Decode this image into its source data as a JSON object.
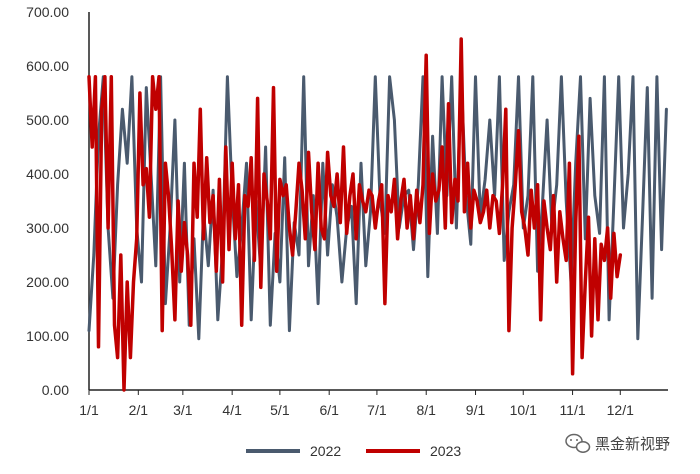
{
  "chart_data": {
    "type": "line",
    "title": "",
    "xlabel": "",
    "ylabel": "",
    "ylim": [
      0,
      700
    ],
    "y_ticks": [
      0,
      100,
      200,
      300,
      400,
      500,
      600,
      700
    ],
    "y_tick_labels": [
      "0.00",
      "100.00",
      "200.00",
      "300.00",
      "400.00",
      "500.00",
      "600.00",
      "700.00"
    ],
    "x_ticks": [
      1,
      32,
      60,
      91,
      121,
      152,
      182,
      213,
      244,
      274,
      305,
      335
    ],
    "x_tick_labels": [
      "1/1",
      "2/1",
      "3/1",
      "4/1",
      "5/1",
      "6/1",
      "7/1",
      "8/1",
      "9/1",
      "10/1",
      "11/1",
      "12/1"
    ],
    "grid": false,
    "legend_position": "bottom",
    "series": [
      {
        "name": "2022",
        "color": "#4a5a6e",
        "x": [
          1,
          4,
          7,
          10,
          13,
          16,
          19,
          22,
          25,
          28,
          31,
          34,
          37,
          40,
          43,
          46,
          49,
          52,
          55,
          58,
          61,
          64,
          67,
          70,
          73,
          76,
          79,
          82,
          85,
          88,
          91,
          94,
          97,
          100,
          103,
          106,
          109,
          112,
          115,
          118,
          121,
          124,
          127,
          130,
          133,
          136,
          139,
          142,
          145,
          148,
          151,
          154,
          157,
          160,
          163,
          166,
          169,
          172,
          175,
          178,
          181,
          184,
          187,
          190,
          193,
          196,
          199,
          202,
          205,
          208,
          211,
          214,
          217,
          220,
          223,
          226,
          229,
          232,
          235,
          238,
          241,
          244,
          247,
          250,
          253,
          256,
          259,
          262,
          265,
          268,
          271,
          274,
          277,
          280,
          283,
          286,
          289,
          292,
          295,
          298,
          301,
          304,
          307,
          310,
          313,
          316,
          319,
          322,
          325,
          328,
          331,
          334,
          337,
          340,
          343,
          346,
          349,
          352,
          355,
          358,
          361,
          364
        ],
        "values": [
          110,
          250,
          470,
          580,
          300,
          170,
          380,
          520,
          420,
          580,
          300,
          200,
          560,
          400,
          230,
          580,
          160,
          300,
          500,
          200,
          420,
          120,
          280,
          95,
          330,
          230,
          370,
          130,
          260,
          580,
          360,
          210,
          300,
          420,
          130,
          350,
          220,
          450,
          120,
          290,
          200,
          430,
          110,
          310,
          250,
          580,
          230,
          360,
          160,
          420,
          250,
          380,
          320,
          200,
          300,
          340,
          160,
          420,
          230,
          330,
          580,
          350,
          290,
          580,
          500,
          300,
          360,
          370,
          260,
          380,
          580,
          210,
          470,
          290,
          580,
          360,
          580,
          300,
          580,
          360,
          270,
          580,
          320,
          390,
          500,
          360,
          580,
          240,
          330,
          380,
          580,
          300,
          360,
          580,
          220,
          340,
          500,
          300,
          380,
          580,
          350,
          200,
          420,
          580,
          280,
          540,
          360,
          290,
          580,
          130,
          350,
          580,
          300,
          400,
          580,
          95,
          320,
          560,
          170,
          580,
          260,
          520
        ]
      },
      {
        "name": "2023",
        "color": "#c00000",
        "x": [
          1,
          3,
          5,
          7,
          9,
          11,
          13,
          15,
          17,
          19,
          21,
          23,
          25,
          27,
          29,
          31,
          33,
          35,
          37,
          39,
          41,
          43,
          45,
          47,
          49,
          51,
          53,
          55,
          57,
          59,
          61,
          63,
          65,
          67,
          69,
          71,
          73,
          75,
          77,
          79,
          81,
          83,
          85,
          87,
          89,
          91,
          93,
          95,
          97,
          99,
          101,
          103,
          105,
          107,
          109,
          111,
          113,
          115,
          117,
          119,
          121,
          123,
          125,
          127,
          129,
          131,
          133,
          135,
          137,
          139,
          141,
          143,
          145,
          147,
          149,
          151,
          153,
          155,
          157,
          159,
          161,
          163,
          165,
          167,
          169,
          171,
          173,
          175,
          177,
          179,
          181,
          183,
          185,
          187,
          189,
          191,
          193,
          195,
          197,
          199,
          201,
          203,
          205,
          207,
          209,
          211,
          213,
          215,
          217,
          219,
          221,
          223,
          225,
          227,
          229,
          231,
          233,
          235,
          237,
          239,
          241,
          243,
          245,
          247,
          249,
          251,
          253,
          255,
          257,
          259,
          261,
          263,
          265,
          267,
          269,
          271,
          273,
          275,
          277,
          279,
          281,
          283,
          285,
          287,
          289,
          291,
          293,
          295,
          297,
          299,
          301,
          303,
          305,
          307,
          309,
          311,
          313,
          315,
          317,
          319,
          321,
          323,
          325,
          327,
          329,
          331,
          333,
          335
        ],
        "values": [
          580,
          450,
          580,
          80,
          520,
          580,
          300,
          580,
          120,
          60,
          250,
          0,
          200,
          60,
          200,
          280,
          550,
          380,
          410,
          320,
          580,
          520,
          580,
          110,
          420,
          360,
          260,
          130,
          350,
          220,
          310,
          250,
          120,
          420,
          320,
          520,
          280,
          430,
          310,
          360,
          220,
          390,
          200,
          450,
          260,
          420,
          280,
          380,
          120,
          360,
          340,
          430,
          240,
          540,
          190,
          400,
          350,
          280,
          560,
          220,
          390,
          360,
          380,
          300,
          250,
          330,
          420,
          370,
          280,
          440,
          330,
          260,
          420,
          300,
          280,
          440,
          360,
          340,
          400,
          310,
          450,
          290,
          360,
          400,
          280,
          380,
          350,
          330,
          370,
          360,
          300,
          350,
          380,
          160,
          360,
          330,
          390,
          280,
          350,
          390,
          300,
          360,
          280,
          370,
          310,
          380,
          620,
          290,
          400,
          350,
          370,
          450,
          300,
          530,
          310,
          390,
          350,
          650,
          330,
          420,
          300,
          370,
          350,
          310,
          330,
          370,
          300,
          360,
          350,
          290,
          380,
          520,
          110,
          300,
          380,
          480,
          330,
          300,
          250,
          370,
          300,
          380,
          130,
          350,
          300,
          260,
          360,
          200,
          330,
          280,
          240,
          420,
          30,
          310,
          470,
          60,
          200,
          320,
          100,
          280,
          130,
          270,
          240,
          300,
          170,
          290,
          210,
          250
        ]
      }
    ]
  },
  "legend": {
    "items": [
      {
        "label": "2022",
        "color": "#4a5a6e"
      },
      {
        "label": "2023",
        "color": "#c00000"
      }
    ]
  },
  "watermark": {
    "text": "黑金新视野",
    "icon": "wechat-icon"
  }
}
